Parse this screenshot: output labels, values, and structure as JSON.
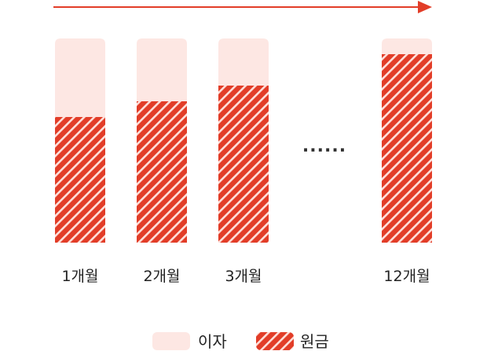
{
  "chart_data": {
    "type": "bar",
    "stacked": true,
    "categories": [
      "1개월",
      "2개월",
      "3개월",
      "12개월"
    ],
    "gap_marker": "......",
    "gap_after_index": 2,
    "series": [
      {
        "name": "원금",
        "values": [
          160,
          180,
          200,
          240
        ],
        "pattern": "hatch"
      },
      {
        "name": "이자",
        "values": [
          100,
          80,
          60,
          20
        ],
        "pattern": "solid"
      }
    ],
    "ylim": [
      0,
      260
    ],
    "arrow": true,
    "legend_position": "bottom-center",
    "colors": {
      "principal": "#e23d28",
      "principal_stripe": "#ffe0da",
      "interest": "#fde7e3",
      "arrow": "#e23d28"
    }
  }
}
